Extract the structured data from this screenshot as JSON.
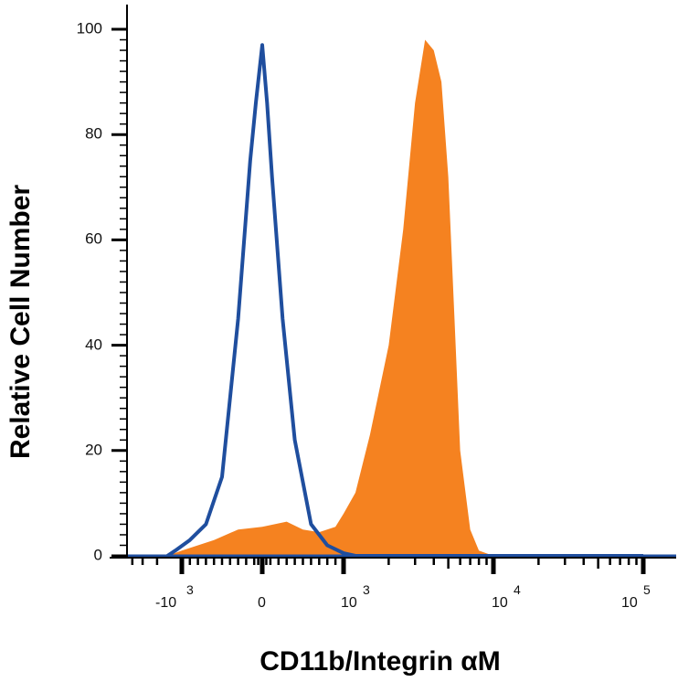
{
  "chart_data": {
    "type": "area",
    "ylabel": "Relative Cell Number",
    "xlabel": "CD11b/Integrin αM",
    "ylim": [
      0,
      100
    ],
    "y_ticks": [
      "0",
      "20",
      "40",
      "60",
      "80",
      "100"
    ],
    "x_scale": "biexponential",
    "x_ticks": [
      {
        "base": "-10",
        "exp": "3"
      },
      {
        "base": "0",
        "exp": ""
      },
      {
        "base": "10",
        "exp": "3"
      },
      {
        "base": "10",
        "exp": "4"
      },
      {
        "base": "10",
        "exp": "5"
      }
    ],
    "grid": false,
    "series": [
      {
        "style": "filled",
        "color": "#f58220",
        "x": [
          -1500,
          -1000,
          -600,
          -300,
          0,
          300,
          500,
          700,
          900,
          1000,
          1200,
          1500,
          2000,
          2500,
          3000,
          3500,
          4000,
          4500,
          5000,
          5500,
          6000,
          7000,
          8000,
          10000,
          20000,
          100000
        ],
        "y": [
          0,
          1,
          3,
          5,
          5.5,
          6.5,
          5,
          4.5,
          5.5,
          8,
          12,
          23,
          40,
          62,
          86,
          98,
          96,
          90,
          72,
          45,
          20,
          5,
          1,
          0,
          0,
          0
        ]
      },
      {
        "style": "line",
        "color": "#1f4e9e",
        "x": [
          -1500,
          -1200,
          -900,
          -700,
          -500,
          -300,
          -150,
          -80,
          0,
          60,
          120,
          250,
          400,
          600,
          800,
          1000,
          1200,
          2000,
          100000
        ],
        "y": [
          0,
          1,
          3,
          6,
          15,
          45,
          75,
          86,
          97,
          86,
          72,
          45,
          22,
          6,
          2,
          0.5,
          0,
          0,
          0
        ]
      }
    ]
  }
}
